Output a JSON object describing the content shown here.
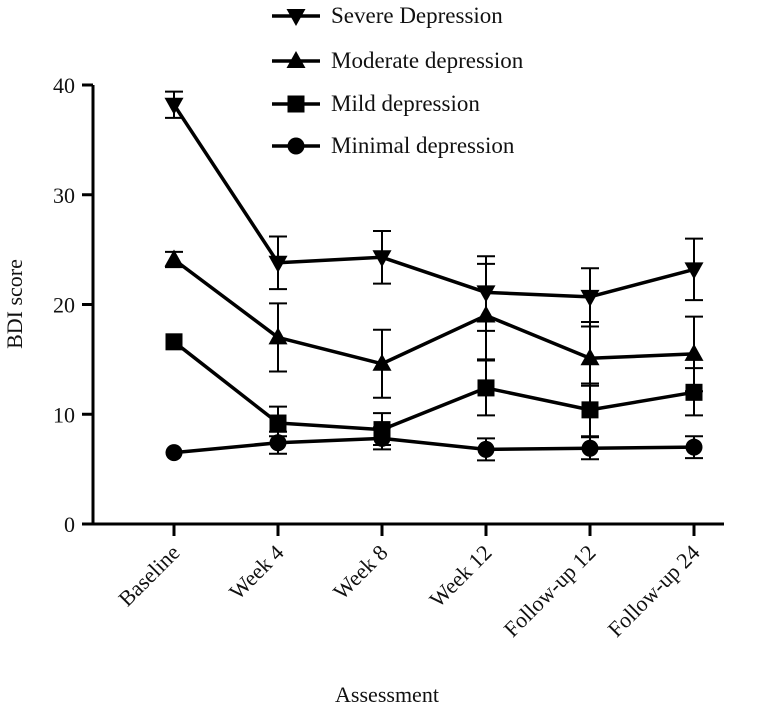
{
  "chart_data": {
    "type": "line",
    "title": "",
    "xlabel": "Assessment",
    "ylabel": "BDI score",
    "ylim": [
      0,
      40
    ],
    "yticks": [
      "0",
      "10",
      "20",
      "30",
      "40"
    ],
    "categories": [
      "Baseline",
      "Week 4",
      "Week 8",
      "Week 12",
      "Follow-up 12",
      "Follow-up 24"
    ],
    "legend_position": "top",
    "series": [
      {
        "name": "Severe Depression",
        "marker": "triangle-down",
        "values": [
          38.2,
          23.8,
          24.3,
          21.1,
          20.7,
          23.2
        ],
        "err_low": [
          37.0,
          21.4,
          21.9,
          17.6,
          18.0,
          20.4
        ],
        "err_high": [
          39.4,
          26.2,
          26.7,
          24.4,
          23.3,
          26.0
        ]
      },
      {
        "name": "Moderate depression",
        "marker": "triangle-up",
        "values": [
          24.1,
          17.0,
          14.6,
          19.0,
          15.1,
          15.5
        ],
        "err_low": [
          23.4,
          13.9,
          11.5,
          15.0,
          12.6,
          12.1
        ],
        "err_high": [
          24.8,
          20.1,
          17.7,
          23.7,
          18.4,
          18.9
        ]
      },
      {
        "name": "Mild depression",
        "marker": "square",
        "values": [
          16.6,
          9.2,
          8.6,
          12.4,
          10.4,
          12.0
        ],
        "err_low": [
          16.6,
          8.0,
          7.2,
          9.9,
          8.0,
          9.9
        ],
        "err_high": [
          16.6,
          10.7,
          10.1,
          14.9,
          12.8,
          14.2
        ]
      },
      {
        "name": "Minimal depression",
        "marker": "circle",
        "values": [
          6.5,
          7.4,
          7.8,
          6.8,
          6.9,
          7.0
        ],
        "err_low": [
          6.5,
          6.4,
          6.8,
          5.8,
          5.9,
          6.0
        ],
        "err_high": [
          6.5,
          8.4,
          8.8,
          7.8,
          7.9,
          8.0
        ]
      }
    ]
  }
}
